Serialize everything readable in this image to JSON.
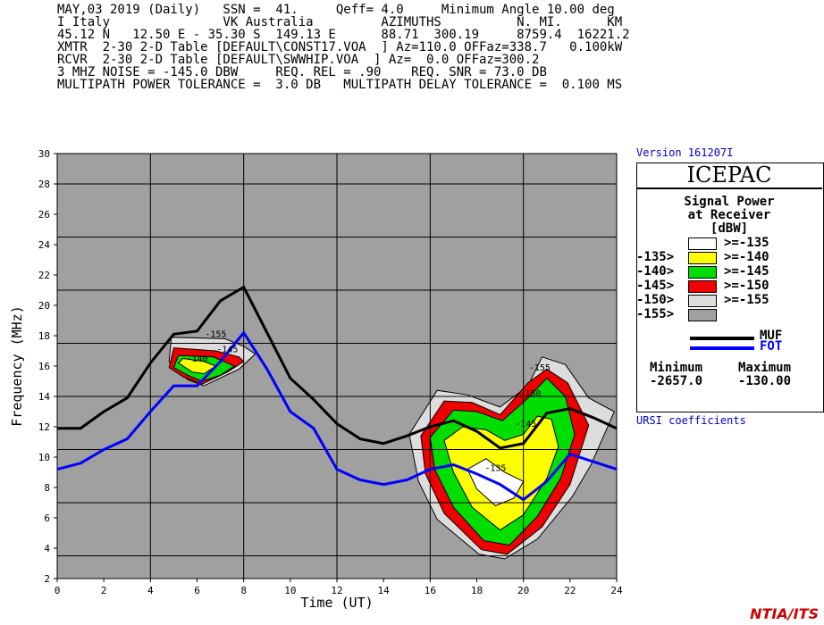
{
  "header": {
    "line1": "MAY,03 2019 (Daily)   SSN =  41.     Qeff= 4.0     Minimum Angle 10.00 deg",
    "line2": "I Italy               VK Australia         AZIMUTHS          N. MI.      KM",
    "line3": "45.12 N   12.50 E - 35.30 S  149.13 E      88.71  300.19     8759.4  16221.2",
    "line4": "XMTR  2-30 2-D Table [DEFAULT\\CONST17.VOA  ] Az=110.0 OFFaz=338.7   0.100kW",
    "line5": "RCVR  2-30 2-D Table [DEFAULT\\SWWHIP.VOA  ] Az=  0.0 OFFaz=300.2",
    "line6": "3 MHZ NOISE = -145.0 DBW     REQ. REL = .90    REQ. SNR = 73.0 DB",
    "line7": "MULTIPATH POWER TOLERANCE =  3.0 DB   MULTIPATH DELAY TOLERANCE =  0.100 MS"
  },
  "version": "Version 161207I",
  "brand": "ICEPAC",
  "panel": {
    "title1": "Signal Power",
    "title2": "at Receiver",
    "title3": "[dBW]",
    "legend": [
      {
        "left": "",
        "right": ">=-135",
        "color": "#ffffff"
      },
      {
        "left": "-135>",
        "right": ">=-140",
        "color": "#ffff00"
      },
      {
        "left": "-140>",
        "right": ">=-145",
        "color": "#00dd00"
      },
      {
        "left": "-145>",
        "right": ">=-150",
        "color": "#ee0000"
      },
      {
        "left": "-150>",
        "right": ">=-155",
        "color": "#dddddd"
      },
      {
        "left": "-155>",
        "right": "",
        "color": "#a0a0a0"
      }
    ],
    "muf_label": "MUF",
    "fot_label": "FOT",
    "min_label": "Minimum",
    "max_label": "Maximum",
    "min_value": "-2657.0",
    "max_value": "-130.00"
  },
  "ursi": "URSI coefficients",
  "credit": "NTIA/ITS",
  "chart_data": {
    "type": "line",
    "xlabel": "Time (UT)",
    "ylabel": "Frequency (MHz)",
    "xlim": [
      0,
      24
    ],
    "ylim": [
      2,
      30
    ],
    "x_ticks": [
      0,
      2,
      4,
      6,
      8,
      10,
      12,
      14,
      16,
      18,
      20,
      22,
      24
    ],
    "y_ticks": [
      2,
      4,
      6,
      8,
      10,
      12,
      14,
      16,
      18,
      20,
      22,
      24,
      26,
      28,
      30
    ],
    "grid": true,
    "series": [
      {
        "name": "MUF",
        "color": "#000000",
        "x": [
          0,
          1,
          2,
          3,
          4,
          5,
          6,
          7,
          8,
          9,
          10,
          11,
          12,
          13,
          14,
          15,
          16,
          17,
          18,
          19,
          20,
          21,
          22,
          23,
          24
        ],
        "y": [
          11.9,
          11.9,
          13.0,
          13.9,
          16.2,
          18.1,
          18.3,
          20.3,
          21.2,
          18.2,
          15.2,
          13.8,
          12.2,
          11.2,
          10.9,
          11.4,
          12.0,
          12.4,
          11.7,
          10.6,
          10.9,
          12.9,
          13.2,
          12.6,
          11.9
        ]
      },
      {
        "name": "FOT",
        "color": "#0000ff",
        "x": [
          0,
          1,
          2,
          3,
          4,
          5,
          6,
          7,
          8,
          9,
          10,
          11,
          12,
          13,
          14,
          15,
          16,
          17,
          18,
          19,
          20,
          21,
          22,
          23,
          24
        ],
        "y": [
          9.2,
          9.6,
          10.5,
          11.2,
          13.0,
          14.7,
          14.7,
          16.3,
          18.2,
          15.8,
          13.0,
          11.9,
          9.2,
          8.5,
          8.2,
          8.5,
          9.2,
          9.5,
          8.9,
          8.2,
          7.2,
          8.4,
          10.2,
          9.7,
          9.2
        ]
      }
    ],
    "contours": [
      {
        "level": -155,
        "color": "#dddddd",
        "region": "A",
        "poly": [
          [
            4.8,
            16.3
          ],
          [
            4.9,
            17.9
          ],
          [
            7.2,
            17.8
          ],
          [
            8.0,
            17.3
          ],
          [
            8.5,
            16.8
          ],
          [
            7.8,
            15.8
          ],
          [
            6.3,
            14.7
          ],
          [
            5.6,
            15.1
          ],
          [
            4.8,
            16.3
          ]
        ]
      },
      {
        "level": -150,
        "color": "#ee0000",
        "region": "A",
        "poly": [
          [
            4.8,
            15.9
          ],
          [
            5.0,
            17.2
          ],
          [
            6.8,
            17.0
          ],
          [
            7.8,
            16.6
          ],
          [
            8.0,
            16.3
          ],
          [
            7.3,
            15.6
          ],
          [
            6.2,
            14.8
          ],
          [
            5.4,
            15.3
          ],
          [
            4.8,
            15.9
          ]
        ]
      },
      {
        "level": -145,
        "color": "#00dd00",
        "region": "A",
        "poly": [
          [
            5.0,
            15.9
          ],
          [
            5.2,
            16.7
          ],
          [
            6.7,
            16.6
          ],
          [
            7.6,
            16.0
          ],
          [
            7.0,
            15.4
          ],
          [
            6.2,
            15.0
          ],
          [
            5.6,
            15.4
          ],
          [
            5.0,
            15.9
          ]
        ]
      },
      {
        "level": -140,
        "color": "#ffff00",
        "region": "A",
        "poly": [
          [
            5.2,
            16.2
          ],
          [
            5.4,
            16.5
          ],
          [
            6.3,
            16.3
          ],
          [
            6.8,
            16.0
          ],
          [
            6.3,
            15.5
          ],
          [
            5.8,
            15.6
          ],
          [
            5.2,
            16.2
          ]
        ]
      },
      {
        "level": -155,
        "color": "#dddddd",
        "region": "B",
        "poly": [
          [
            15.1,
            11.5
          ],
          [
            16.3,
            14.4
          ],
          [
            17.6,
            14.1
          ],
          [
            19.0,
            13.3
          ],
          [
            20.2,
            14.7
          ],
          [
            20.8,
            16.6
          ],
          [
            21.8,
            16.1
          ],
          [
            22.8,
            13.9
          ],
          [
            23.9,
            13.0
          ],
          [
            22.9,
            9.5
          ],
          [
            22.1,
            7.4
          ],
          [
            20.6,
            4.6
          ],
          [
            19.2,
            3.3
          ],
          [
            18.1,
            3.6
          ],
          [
            16.3,
            5.9
          ],
          [
            15.5,
            8.4
          ],
          [
            15.1,
            11.5
          ]
        ]
      },
      {
        "level": -150,
        "color": "#ee0000",
        "region": "B",
        "poly": [
          [
            15.6,
            11.4
          ],
          [
            16.6,
            13.7
          ],
          [
            17.8,
            13.6
          ],
          [
            19.0,
            12.8
          ],
          [
            20.2,
            14.9
          ],
          [
            21.0,
            15.8
          ],
          [
            21.9,
            14.9
          ],
          [
            22.8,
            12.1
          ],
          [
            22.0,
            8.2
          ],
          [
            20.8,
            5.4
          ],
          [
            19.3,
            3.6
          ],
          [
            18.2,
            3.9
          ],
          [
            16.6,
            6.3
          ],
          [
            15.8,
            8.9
          ],
          [
            15.6,
            11.4
          ]
        ]
      },
      {
        "level": -145,
        "color": "#00dd00",
        "region": "B",
        "poly": [
          [
            16.0,
            11.3
          ],
          [
            17.0,
            13.1
          ],
          [
            18.0,
            13.0
          ],
          [
            19.1,
            12.4
          ],
          [
            20.2,
            13.9
          ],
          [
            21.0,
            15.2
          ],
          [
            21.8,
            14.0
          ],
          [
            22.2,
            11.5
          ],
          [
            21.6,
            8.6
          ],
          [
            20.6,
            6.1
          ],
          [
            19.4,
            4.2
          ],
          [
            18.3,
            4.5
          ],
          [
            17.0,
            6.7
          ],
          [
            16.2,
            9.2
          ],
          [
            16.0,
            11.3
          ]
        ]
      },
      {
        "level": -140,
        "color": "#ffff00",
        "region": "B",
        "poly": [
          [
            16.6,
            11.1
          ],
          [
            17.4,
            12.0
          ],
          [
            18.4,
            11.8
          ],
          [
            19.2,
            11.1
          ],
          [
            20.0,
            11.5
          ],
          [
            20.6,
            12.7
          ],
          [
            21.2,
            12.5
          ],
          [
            21.5,
            10.7
          ],
          [
            21.0,
            8.6
          ],
          [
            20.0,
            6.2
          ],
          [
            19.0,
            5.2
          ],
          [
            17.8,
            6.7
          ],
          [
            17.0,
            9.0
          ],
          [
            16.6,
            11.1
          ]
        ]
      },
      {
        "level": -135,
        "color": "#ffffff",
        "region": "B",
        "poly": [
          [
            17.6,
            9.2
          ],
          [
            18.4,
            9.9
          ],
          [
            19.2,
            9.0
          ],
          [
            20.0,
            8.4
          ],
          [
            19.6,
            7.3
          ],
          [
            18.8,
            6.8
          ],
          [
            18.0,
            7.9
          ],
          [
            17.6,
            9.2
          ]
        ]
      }
    ],
    "contour_labels": [
      {
        "text": "-155",
        "x": 6.8,
        "y": 17.9
      },
      {
        "text": "-140",
        "x": 6.0,
        "y": 16.3
      },
      {
        "text": "-145",
        "x": 7.3,
        "y": 16.9
      },
      {
        "text": "-155",
        "x": 20.7,
        "y": 15.7
      },
      {
        "text": "-150",
        "x": 20.3,
        "y": 14.0
      },
      {
        "text": "-145",
        "x": 20.1,
        "y": 12.0
      },
      {
        "text": "-135",
        "x": 18.8,
        "y": 9.1
      }
    ]
  }
}
